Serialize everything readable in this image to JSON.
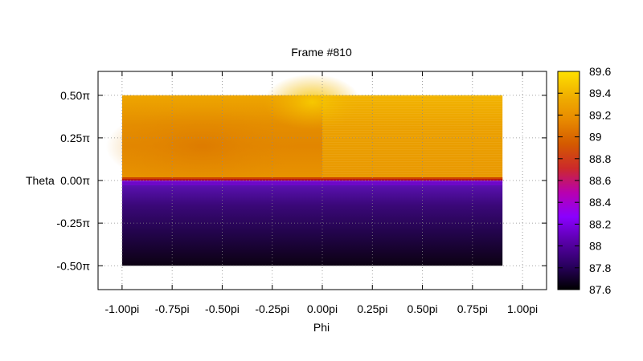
{
  "chart_data": {
    "type": "heatmap",
    "title": "Frame #810",
    "xlabel": "Phi",
    "ylabel": "Theta",
    "x_ticks": [
      "-1.00pi",
      "-0.75pi",
      "-0.50pi",
      "-0.25pi",
      "0.00pi",
      "0.25pi",
      "0.50pi",
      "0.75pi",
      "1.00pi"
    ],
    "y_ticks": [
      "0.50π",
      "0.25π",
      "0.00π",
      "-0.25π",
      "-0.50π"
    ],
    "xlim": [
      -1.12,
      1.12
    ],
    "ylim": [
      -0.64,
      0.64
    ],
    "grid": true,
    "data_extent": {
      "x": [
        -1.0,
        0.9
      ],
      "y": [
        -0.5,
        0.5
      ]
    },
    "colorbar": {
      "min": 87.6,
      "max": 89.6,
      "ticks": [
        "89.6",
        "89.4",
        "89.2",
        "89",
        "88.8",
        "88.6",
        "88.4",
        "88.2",
        "88",
        "87.8",
        "87.6"
      ],
      "palette": [
        "#000000",
        "#2a0060",
        "#5a00aa",
        "#8a00ff",
        "#b800b0",
        "#cc2a2a",
        "#d45a00",
        "#e88a00",
        "#f0b000",
        "#ffe000"
      ]
    },
    "approx_values": {
      "description_rows": "top half ~89.2-89.45 (darker orange near phi=-0.6pi theta=0.2pi, brighter near phi=0 theta=0.5pi); thin red band at theta~0 (~88.7); lower half purple fading to black (~88.0 to 87.6)"
    }
  }
}
